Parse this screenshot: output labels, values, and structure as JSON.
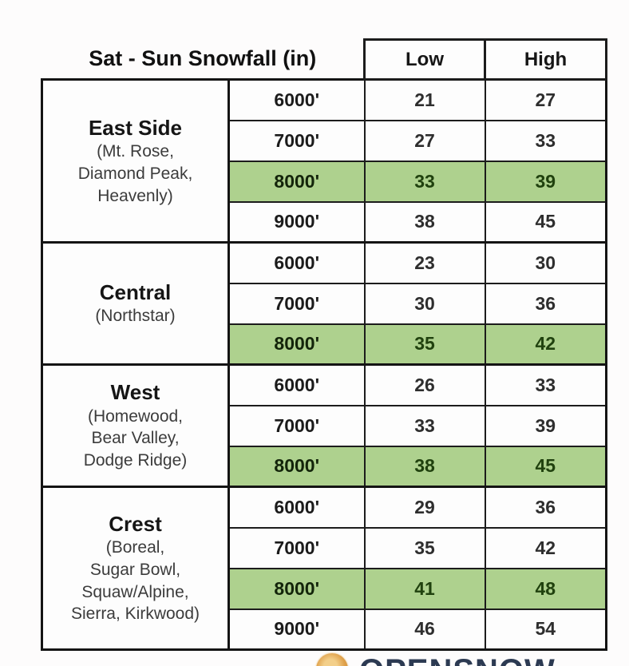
{
  "title": "Sat - Sun Snowfall (in)",
  "columns": {
    "low": "Low",
    "high": "High"
  },
  "sections": [
    {
      "name": "East Side",
      "details": [
        "(Mt. Rose,",
        "Diamond Peak,",
        "Heavenly)"
      ],
      "rows": [
        {
          "elev": "6000'",
          "low": "21",
          "high": "27",
          "highlight": false
        },
        {
          "elev": "7000'",
          "low": "27",
          "high": "33",
          "highlight": false
        },
        {
          "elev": "8000'",
          "low": "33",
          "high": "39",
          "highlight": true
        },
        {
          "elev": "9000'",
          "low": "38",
          "high": "45",
          "highlight": false
        }
      ]
    },
    {
      "name": "Central",
      "details": [
        "(Northstar)"
      ],
      "rows": [
        {
          "elev": "6000'",
          "low": "23",
          "high": "30",
          "highlight": false
        },
        {
          "elev": "7000'",
          "low": "30",
          "high": "36",
          "highlight": false
        },
        {
          "elev": "8000'",
          "low": "35",
          "high": "42",
          "highlight": true
        }
      ]
    },
    {
      "name": "West",
      "details": [
        "(Homewood,",
        "Bear Valley,",
        "Dodge Ridge)"
      ],
      "rows": [
        {
          "elev": "6000'",
          "low": "26",
          "high": "33",
          "highlight": false
        },
        {
          "elev": "7000'",
          "low": "33",
          "high": "39",
          "highlight": false
        },
        {
          "elev": "8000'",
          "low": "38",
          "high": "45",
          "highlight": true
        }
      ]
    },
    {
      "name": "Crest",
      "details": [
        "(Boreal,",
        "Sugar Bowl,",
        "Squaw/Alpine,",
        "Sierra, Kirkwood)"
      ],
      "rows": [
        {
          "elev": "6000'",
          "low": "29",
          "high": "36",
          "highlight": false
        },
        {
          "elev": "7000'",
          "low": "35",
          "high": "42",
          "highlight": false
        },
        {
          "elev": "8000'",
          "low": "41",
          "high": "48",
          "highlight": true
        },
        {
          "elev": "9000'",
          "low": "46",
          "high": "54",
          "highlight": false
        }
      ]
    }
  ],
  "logo": {
    "text": "OPENSNOW"
  },
  "colors": {
    "highlight_green": "#aed18e",
    "highlight_text": "#20410e",
    "border_black": "#141414",
    "logo_navy": "#2c3a52",
    "logo_orange": "#dfa04a"
  }
}
